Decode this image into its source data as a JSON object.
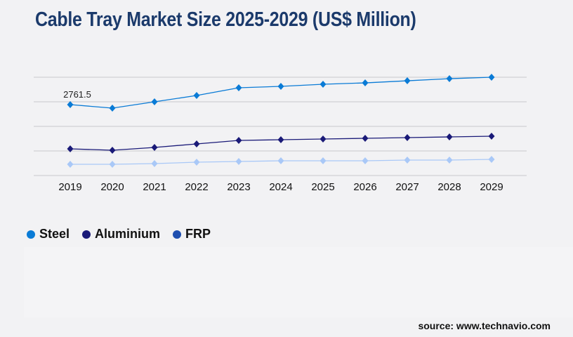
{
  "chart_data": {
    "type": "line",
    "title": "Cable Tray Market Size 2025-2029 (US$ Million)",
    "xlabel": "",
    "ylabel": "",
    "ylim": [
      0,
      3828
    ],
    "grid": true,
    "gridlines": [
      0,
      957,
      1914,
      2871,
      3828
    ],
    "legend_position": "bottom-left",
    "categories": [
      "2019",
      "2020",
      "2021",
      "2022",
      "2023",
      "2024",
      "2025",
      "2026",
      "2027",
      "2028",
      "2029"
    ],
    "series": [
      {
        "name": "Steel",
        "color": "#0a7bd6",
        "legend_color": "#0a7bd6",
        "values": [
          2761.5,
          2625,
          2870,
          3117,
          3417,
          3472,
          3554,
          3608,
          3690,
          3772,
          3827
        ],
        "data_labels": {
          "0": "2761.5"
        }
      },
      {
        "name": "Aluminium",
        "color": "#1a1a78",
        "legend_color": "#1a1a78",
        "values": [
          1039,
          984,
          1094,
          1230,
          1367,
          1394,
          1422,
          1449,
          1476,
          1504,
          1531
        ]
      },
      {
        "name": "FRP",
        "color": "#a9c8f7",
        "legend_color": "#1f4fb0",
        "values": [
          437,
          437,
          465,
          519,
          547,
          574,
          574,
          574,
          601,
          601,
          629
        ]
      }
    ]
  },
  "source": "source: www.technavio.com"
}
